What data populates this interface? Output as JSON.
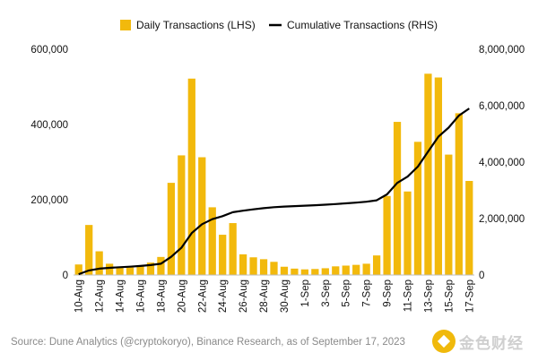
{
  "chart_data": {
    "type": "bar",
    "categories": [
      "10-Aug",
      "11-Aug",
      "12-Aug",
      "13-Aug",
      "14-Aug",
      "15-Aug",
      "16-Aug",
      "17-Aug",
      "18-Aug",
      "19-Aug",
      "20-Aug",
      "21-Aug",
      "22-Aug",
      "23-Aug",
      "24-Aug",
      "25-Aug",
      "26-Aug",
      "27-Aug",
      "28-Aug",
      "29-Aug",
      "30-Aug",
      "31-Aug",
      "1-Sep",
      "2-Sep",
      "3-Sep",
      "4-Sep",
      "5-Sep",
      "6-Sep",
      "7-Sep",
      "8-Sep",
      "9-Sep",
      "10-Sep",
      "11-Sep",
      "12-Sep",
      "13-Sep",
      "14-Sep",
      "15-Sep",
      "16-Sep",
      "17-Sep"
    ],
    "tick_labels": [
      "10-Aug",
      "12-Aug",
      "14-Aug",
      "16-Aug",
      "18-Aug",
      "20-Aug",
      "22-Aug",
      "24-Aug",
      "26-Aug",
      "28-Aug",
      "30-Aug",
      "1-Sep",
      "3-Sep",
      "5-Sep",
      "7-Sep",
      "9-Sep",
      "11-Sep",
      "13-Sep",
      "15-Sep",
      "17-Sep"
    ],
    "series": [
      {
        "name": "Daily Transactions (LHS)",
        "type": "bar",
        "axis": "left",
        "color": "#f2b90c",
        "values": [
          28000,
          133000,
          63000,
          30000,
          22000,
          20000,
          24000,
          33000,
          48000,
          245000,
          318000,
          522000,
          313000,
          180000,
          107000,
          138000,
          55000,
          47000,
          42000,
          35000,
          22000,
          17000,
          15000,
          16000,
          18000,
          23000,
          25000,
          27000,
          30000,
          52000,
          210000,
          407000,
          222000,
          354000,
          535000,
          525000,
          320000,
          430000,
          250000
        ]
      },
      {
        "name": "Cumulative Transactions (RHS)",
        "type": "line",
        "axis": "right",
        "color": "#000000",
        "values": [
          28000,
          161000,
          224000,
          254000,
          276000,
          296000,
          320000,
          353000,
          401000,
          646000,
          964000,
          1486000,
          1799000,
          1979000,
          2086000,
          2224000,
          2279000,
          2326000,
          2368000,
          2403000,
          2425000,
          2442000,
          2457000,
          2473000,
          2491000,
          2514000,
          2539000,
          2566000,
          2596000,
          2648000,
          2858000,
          3265000,
          3487000,
          3841000,
          4376000,
          4901000,
          5221000,
          5651000,
          5901000
        ]
      }
    ],
    "y_left": {
      "ylim": [
        0,
        600000
      ],
      "ticks": [
        "0",
        "200,000",
        "400,000",
        "600,000"
      ]
    },
    "y_right": {
      "ylim": [
        0,
        8000000
      ],
      "ticks": [
        "0",
        "2,000,000",
        "4,000,000",
        "6,000,000",
        "8,000,000"
      ]
    },
    "legend": "top-center",
    "grid": false
  },
  "source_note": "Source: Dune Analytics (@cryptokoryo), Binance Research, as of September 17, 2023",
  "watermark_text": "金色财经"
}
